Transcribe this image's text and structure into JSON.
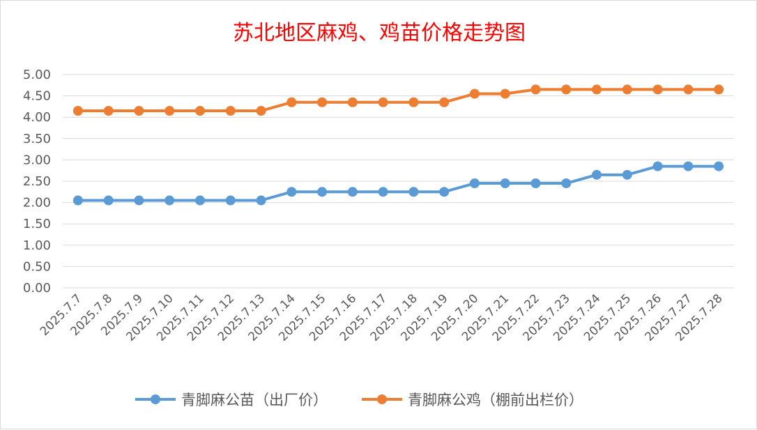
{
  "chart_data": {
    "type": "line",
    "title": "苏北地区麻鸡、鸡苗价格走势图",
    "xlabel": "",
    "ylabel": "",
    "categories": [
      "2025.7.7",
      "2025.7.8",
      "2025.7.9",
      "2025.7.10",
      "2025.7.11",
      "2025.7.12",
      "2025.7.13",
      "2025.7.14",
      "2025.7.15",
      "2025.7.16",
      "2025.7.17",
      "2025.7.18",
      "2025.7.19",
      "2025.7.20",
      "2025.7.21",
      "2025.7.22",
      "2025.7.23",
      "2025.7.24",
      "2025.7.25",
      "2025.7.26",
      "2025.7.27",
      "2025.7.28"
    ],
    "y_ticks": [
      "0.00",
      "0.50",
      "1.00",
      "1.50",
      "2.00",
      "2.50",
      "3.00",
      "3.50",
      "4.00",
      "4.50",
      "5.00"
    ],
    "ylim": [
      0,
      5
    ],
    "grid": true,
    "legend_position": "bottom",
    "series": [
      {
        "name": "青脚麻公苗（出厂价）",
        "color": "#5b9bd5",
        "values": [
          2.05,
          2.05,
          2.05,
          2.05,
          2.05,
          2.05,
          2.05,
          2.25,
          2.25,
          2.25,
          2.25,
          2.25,
          2.25,
          2.45,
          2.45,
          2.45,
          2.45,
          2.65,
          2.65,
          2.85,
          2.85,
          2.85
        ]
      },
      {
        "name": "青脚麻公鸡（棚前出栏价）",
        "color": "#ed7d31",
        "values": [
          4.15,
          4.15,
          4.15,
          4.15,
          4.15,
          4.15,
          4.15,
          4.35,
          4.35,
          4.35,
          4.35,
          4.35,
          4.35,
          4.55,
          4.55,
          4.65,
          4.65,
          4.65,
          4.65,
          4.65,
          4.65,
          4.65
        ]
      }
    ]
  }
}
